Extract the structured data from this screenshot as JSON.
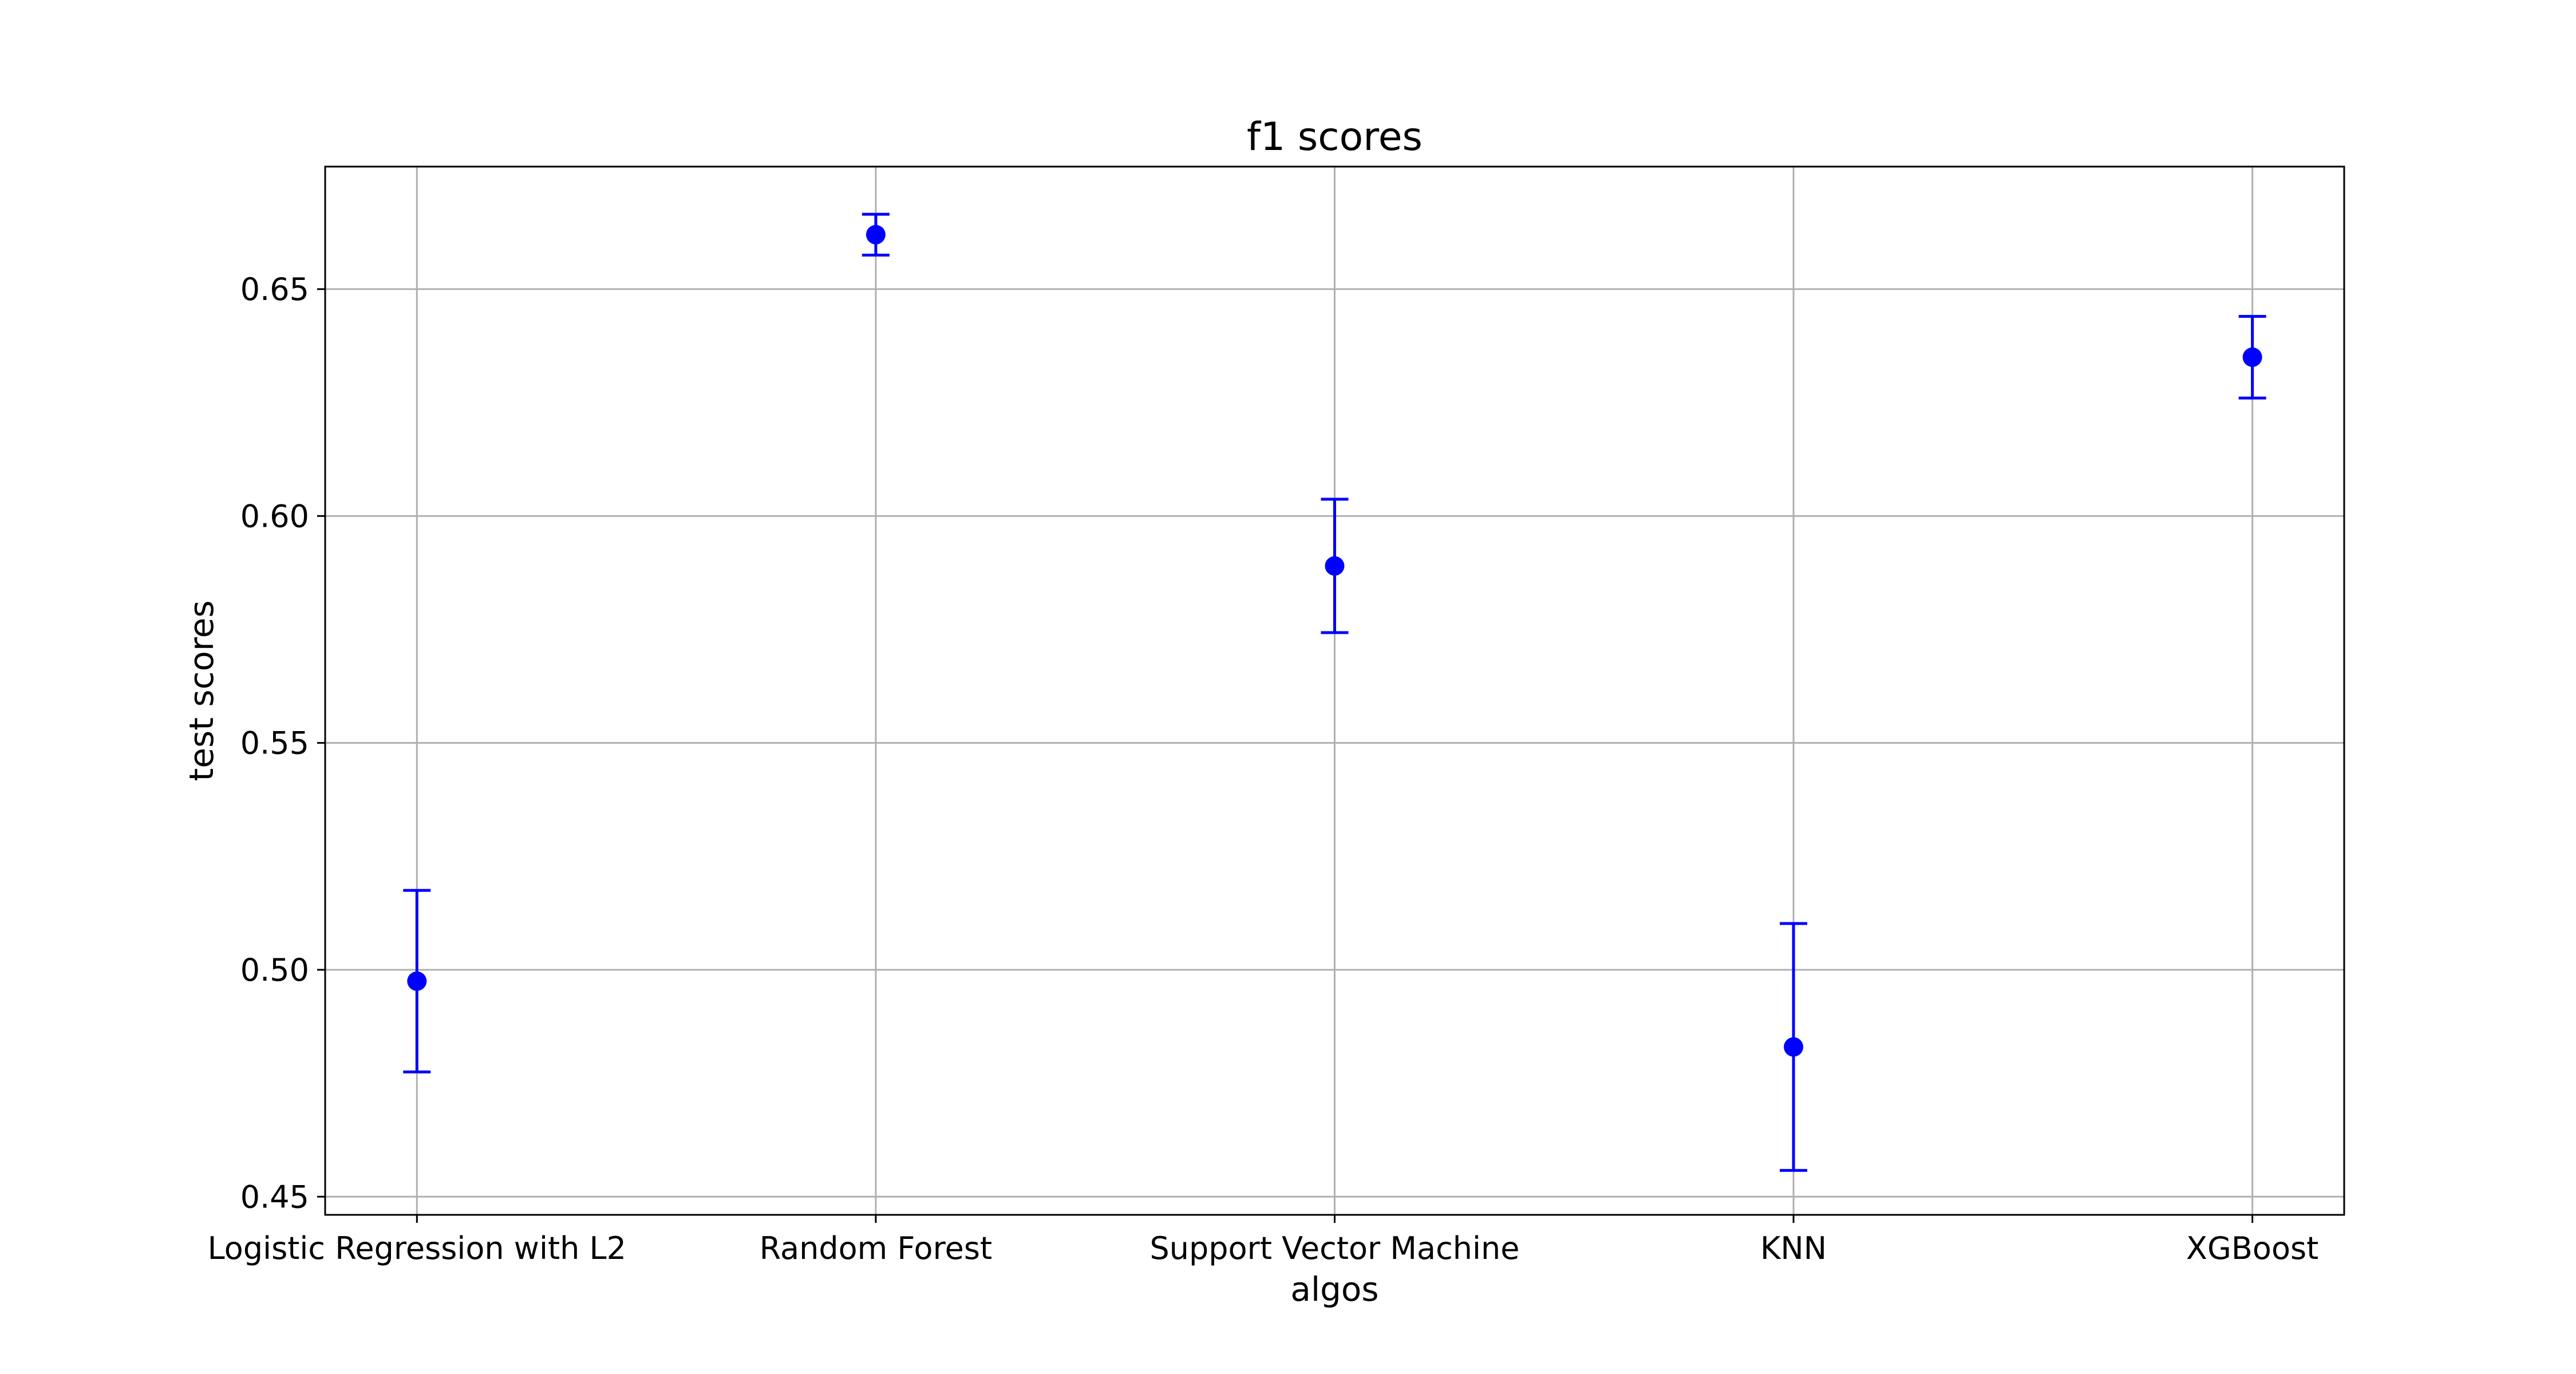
{
  "chart_data": {
    "type": "scatter",
    "title": "f1 scores",
    "xlabel": "algos",
    "ylabel": "test scores",
    "categories": [
      "Logistic Regression with L2",
      "Random Forest",
      "Support Vector Machine",
      "KNN",
      "XGBoost"
    ],
    "values": [
      0.4975,
      0.662,
      0.589,
      0.483,
      0.635
    ],
    "error": [
      0.02,
      0.0045,
      0.0147,
      0.0272,
      0.009
    ],
    "ylim": [
      0.446,
      0.677
    ],
    "yticks": [
      0.45,
      0.5,
      0.55,
      0.6,
      0.65
    ],
    "ytick_labels": [
      "0.45",
      "0.50",
      "0.55",
      "0.60",
      "0.65"
    ],
    "grid": true,
    "marker_color": "#0000ff",
    "grid_color": "#b0b0b0"
  }
}
